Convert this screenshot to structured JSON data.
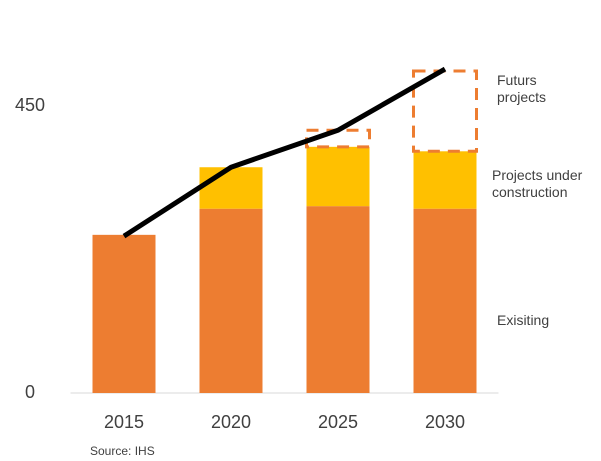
{
  "chart_data": {
    "type": "bar",
    "stacked": true,
    "categories": [
      "2015",
      "2020",
      "2025",
      "2030"
    ],
    "series": [
      {
        "name": "Exisiting",
        "color": "#ed7d31",
        "values": [
          248,
          289,
          293,
          289
        ]
      },
      {
        "name": "Projects under construction",
        "color": "#ffc000",
        "values": [
          null,
          65,
          93,
          90
        ]
      },
      {
        "name": "Futurs projects",
        "color": "#ed7d31",
        "style": "dashed",
        "values": [
          null,
          null,
          26,
          126
        ]
      },
      {
        "type": "line",
        "color": "#000000",
        "values": [
          246,
          354,
          412,
          508
        ]
      }
    ],
    "ylim": [
      0,
      530
    ],
    "yticks": [
      0,
      450
    ],
    "grid": false,
    "source": "Source: IHS"
  }
}
